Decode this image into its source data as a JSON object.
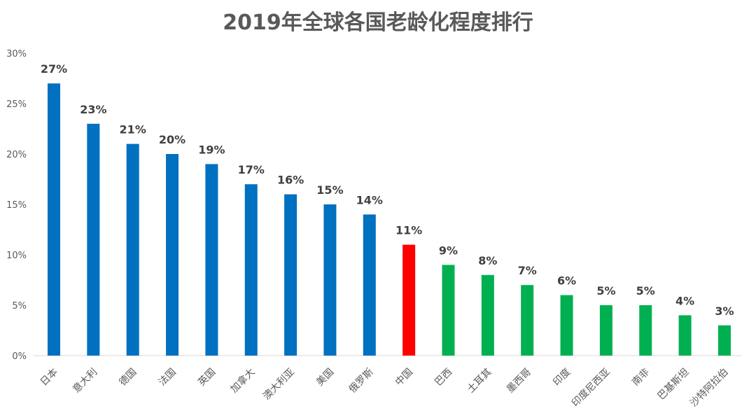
{
  "chart_data": {
    "type": "bar",
    "title": "2019年全球各国老龄化程度排行",
    "xlabel": "",
    "ylabel": "",
    "ylim": [
      0,
      30
    ],
    "yticks": [
      "0%",
      "5%",
      "10%",
      "15%",
      "20%",
      "25%",
      "30%"
    ],
    "grid": false,
    "categories": [
      "日本",
      "意大利",
      "德国",
      "法国",
      "英国",
      "加拿大",
      "澳大利亚",
      "美国",
      "俄罗斯",
      "中国",
      "巴西",
      "土耳其",
      "墨西哥",
      "印度",
      "印度尼西亚",
      "南非",
      "巴基斯坦",
      "沙特阿拉伯"
    ],
    "values": [
      27,
      23,
      21,
      20,
      19,
      17,
      16,
      15,
      14,
      11,
      9,
      8,
      7,
      6,
      5,
      5,
      4,
      3
    ],
    "labels": [
      "27%",
      "23%",
      "21%",
      "20%",
      "19%",
      "17%",
      "16%",
      "15%",
      "14%",
      "11%",
      "9%",
      "8%",
      "7%",
      "6%",
      "5%",
      "5%",
      "4%",
      "3%"
    ],
    "colors": [
      "#0070C0",
      "#0070C0",
      "#0070C0",
      "#0070C0",
      "#0070C0",
      "#0070C0",
      "#0070C0",
      "#0070C0",
      "#0070C0",
      "#FF0000",
      "#00B050",
      "#00B050",
      "#00B050",
      "#00B050",
      "#00B050",
      "#00B050",
      "#00B050",
      "#00B050"
    ]
  }
}
